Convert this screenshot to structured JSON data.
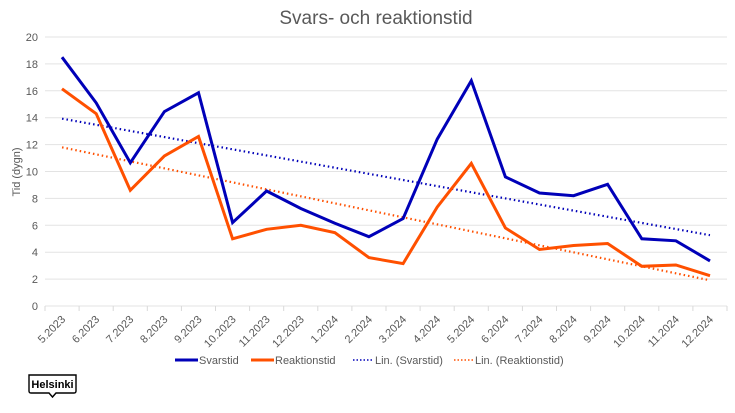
{
  "chart_data": {
    "type": "line",
    "title": "Svars- och reaktionstid",
    "xlabel": "",
    "ylabel": "Tid (dygn)",
    "ylim": [
      0,
      20
    ],
    "yticks": [
      0,
      2,
      4,
      6,
      8,
      10,
      12,
      14,
      16,
      18,
      20
    ],
    "grid": true,
    "legend_position": "bottom",
    "categories": [
      "5.2023",
      "6.2023",
      "7.2023",
      "8.2023",
      "9.2023",
      "10.2023",
      "11.2023",
      "12.2023",
      "1.2024",
      "2.2024",
      "3.2024",
      "4.2024",
      "5.2024",
      "6.2024",
      "7.2024",
      "8.2024",
      "9.2024",
      "10.2024",
      "11.2024",
      "12.2024"
    ],
    "series": [
      {
        "name": "Svarstid",
        "color": "#0000B8",
        "style": "solid",
        "values": [
          18.5,
          15.1,
          10.65,
          14.45,
          15.85,
          6.2,
          8.55,
          7.25,
          6.15,
          5.15,
          6.5,
          12.4,
          16.75,
          9.6,
          8.4,
          8.2,
          9.05,
          5.0,
          4.85,
          3.35
        ]
      },
      {
        "name": "Reaktionstid",
        "color": "#FF5000",
        "style": "solid",
        "values": [
          16.15,
          14.3,
          8.6,
          11.15,
          12.6,
          5.0,
          5.7,
          6.0,
          5.45,
          3.6,
          3.15,
          7.35,
          10.6,
          5.8,
          4.2,
          4.5,
          4.65,
          2.95,
          3.05,
          2.25
        ]
      }
    ],
    "trendlines": [
      {
        "name": "Lin. (Svarstid)",
        "of": "Svarstid",
        "color": "#0000B8",
        "style": "dotted"
      },
      {
        "name": "Lin. (Reaktionstid)",
        "of": "Reaktionstid",
        "color": "#FF5000",
        "style": "dotted"
      }
    ]
  },
  "logo": {
    "text": "Helsinki"
  }
}
